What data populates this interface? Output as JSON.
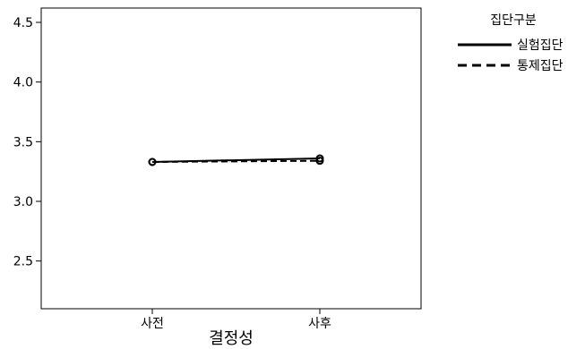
{
  "chart_data": {
    "type": "line",
    "title": "",
    "xlabel": "결정성",
    "ylabel": "",
    "categories": [
      "사전",
      "사후"
    ],
    "ylim": [
      2.1,
      4.62
    ],
    "yticks": [
      2.5,
      3.0,
      3.5,
      4.0,
      4.5
    ],
    "ytick_labels": [
      "2.5",
      "3.0",
      "3.5",
      "4.0",
      "4.5"
    ],
    "grid": false,
    "legend": {
      "title": "집단구분",
      "placement": "right-top"
    },
    "series": [
      {
        "name": "실험집단",
        "style": "solid",
        "color": "#000000",
        "values": [
          3.33,
          3.36
        ]
      },
      {
        "name": "통제집단",
        "style": "dashed",
        "color": "#000000",
        "values": [
          3.33,
          3.34
        ]
      }
    ]
  }
}
